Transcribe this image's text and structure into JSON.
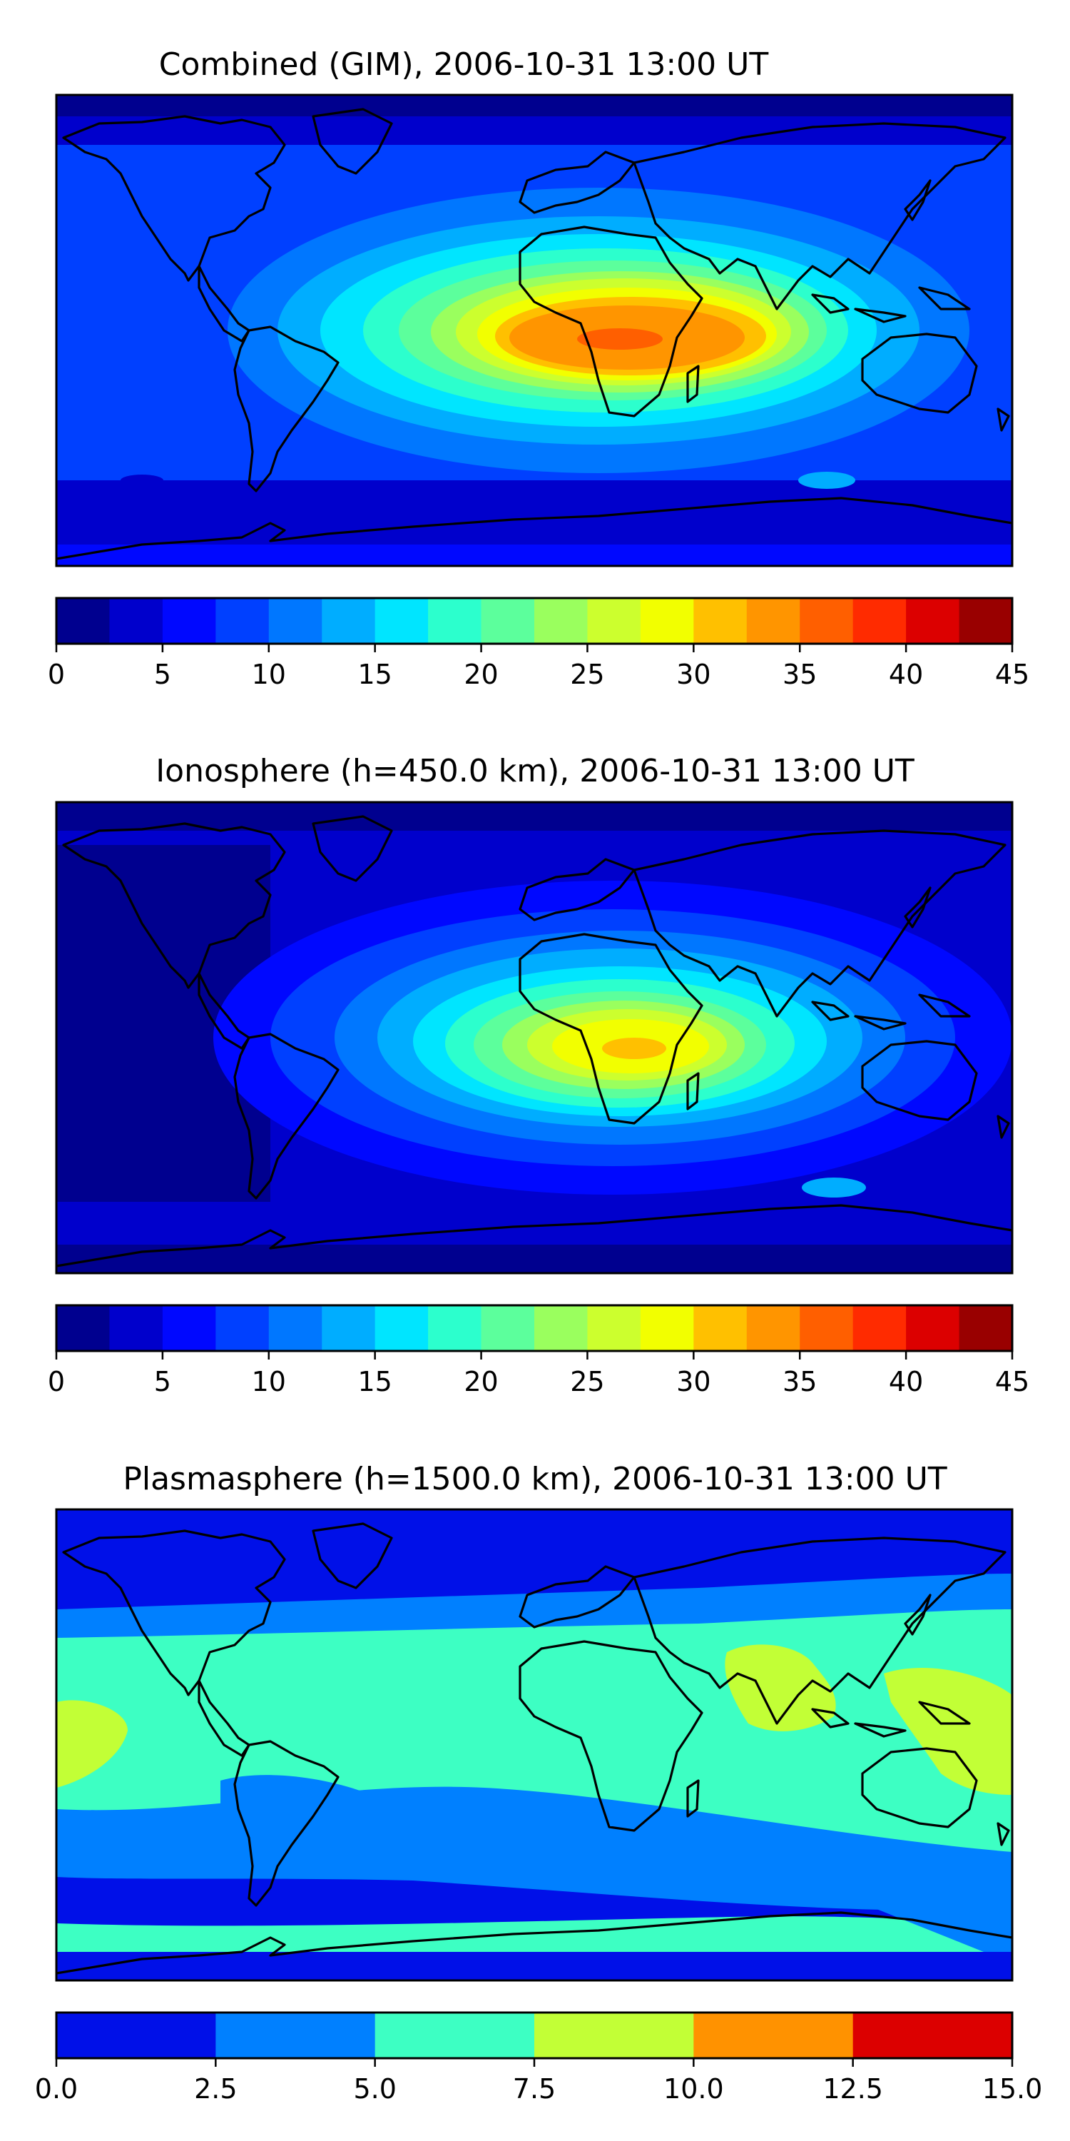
{
  "panels": [
    {
      "title": "Combined (GIM), 2006-10-31 13:00 UT",
      "colorbar": {
        "ticks": [
          "0",
          "5",
          "10",
          "15",
          "20",
          "25",
          "30",
          "35",
          "40",
          "45"
        ],
        "bounds": [
          0,
          45
        ],
        "colors": [
          "#00008f",
          "#0000cc",
          "#0008ff",
          "#0040ff",
          "#0077ff",
          "#00adff",
          "#00e5ff",
          "#2cffcd",
          "#5cff9c",
          "#9aff5e",
          "#ccff2e",
          "#f2ff00",
          "#ffc000",
          "#ff9500",
          "#ff5f00",
          "#ff2b00",
          "#dc0000",
          "#990000"
        ]
      }
    },
    {
      "title": "Ionosphere  (h=450.0 km), 2006-10-31 13:00 UT",
      "colorbar": {
        "ticks": [
          "0",
          "5",
          "10",
          "15",
          "20",
          "25",
          "30",
          "35",
          "40",
          "45"
        ],
        "bounds": [
          0,
          45
        ],
        "colors": [
          "#00008f",
          "#0000cc",
          "#0008ff",
          "#0040ff",
          "#0077ff",
          "#00adff",
          "#00e5ff",
          "#2cffcd",
          "#5cff9c",
          "#9aff5e",
          "#ccff2e",
          "#f2ff00",
          "#ffc000",
          "#ff9500",
          "#ff5f00",
          "#ff2b00",
          "#dc0000",
          "#990000"
        ]
      }
    },
    {
      "title": "Plasmasphere (h=1500.0 km), 2006-10-31 13:00 UT",
      "colorbar": {
        "ticks": [
          "0.0",
          "2.5",
          "5.0",
          "7.5",
          "10.0",
          "12.5",
          "15.0"
        ],
        "bounds": [
          0,
          15
        ],
        "colors": [
          "#0010e8",
          "#0080ff",
          "#3dffc3",
          "#c2ff36",
          "#ff9200",
          "#dc0000"
        ]
      }
    }
  ],
  "colors": {
    "coast": "#000000",
    "frame": "#000000"
  }
}
